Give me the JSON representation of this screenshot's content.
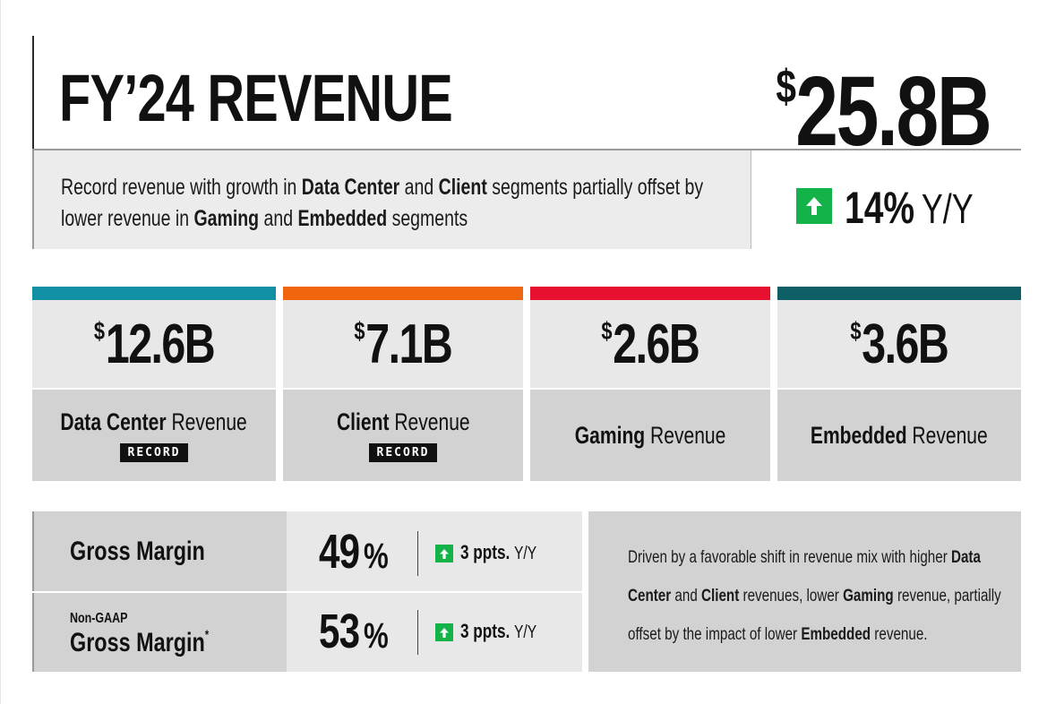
{
  "header": {
    "title": "FY’24 REVENUE",
    "total_currency": "$",
    "total_value": "25.8B"
  },
  "summary": {
    "t1": "Record revenue with growth in ",
    "b1": "Data Center",
    "t2": " and ",
    "b2": "Client",
    "t3": " segments partially offset by lower revenue in ",
    "b3": "Gaming",
    "t4": " and ",
    "b4": "Embedded",
    "t5": " segments"
  },
  "yoy": {
    "percent": "14%",
    "label": "Y/Y",
    "direction_icon": "arrow-up-icon",
    "badge_color": "#13b34a"
  },
  "segments": [
    {
      "currency": "$",
      "value": "12.6B",
      "name_bold": "Data Center",
      "name_rest": " Revenue",
      "badge": "RECORD",
      "color": "#1191a3"
    },
    {
      "currency": "$",
      "value": "7.1B",
      "name_bold": "Client",
      "name_rest": " Revenue",
      "badge": "RECORD",
      "color": "#f2650f"
    },
    {
      "currency": "$",
      "value": "2.6B",
      "name_bold": "Gaming",
      "name_rest": " Revenue",
      "badge": "",
      "color": "#e8102f"
    },
    {
      "currency": "$",
      "value": "3.6B",
      "name_bold": "Embedded",
      "name_rest": " Revenue",
      "badge": "",
      "color": "#0f5f66"
    }
  ],
  "margins": {
    "gross": {
      "label": "Gross Margin",
      "value": "49",
      "unit": "%",
      "change": "3 ppts.",
      "change_suffix": "Y/Y"
    },
    "non_gaap": {
      "prefix": "Non-GAAP",
      "label": "Gross Margin",
      "footnote": "*",
      "value": "53",
      "unit": "%",
      "change": "3 ppts.",
      "change_suffix": "Y/Y"
    }
  },
  "driven": {
    "t1": "Driven by a favorable shift in revenue mix with higher ",
    "b1": "Data Center",
    "t2": " and ",
    "b2": "Client",
    "t3": " revenues, lower ",
    "b3": "Gaming",
    "t4": " revenue, partially offset by the impact of lower ",
    "b4": "Embedded",
    "t5": " revenue."
  }
}
